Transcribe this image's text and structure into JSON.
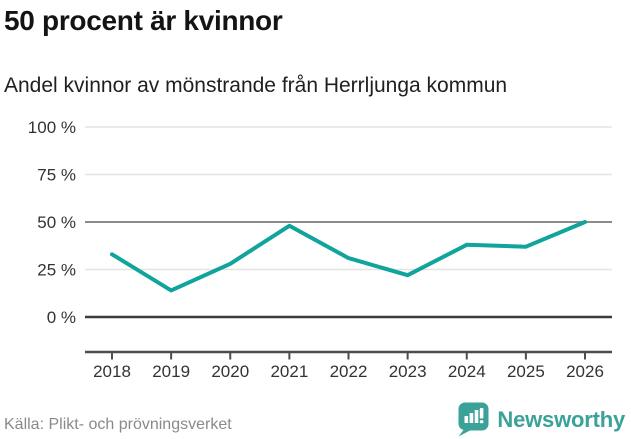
{
  "header": {
    "title": "50 procent är kvinnor",
    "subtitle": "Andel kvinnor av mönstrande från Herrljunga kommun"
  },
  "chart_data": {
    "type": "line",
    "title": "50 procent är kvinnor",
    "subtitle": "Andel kvinnor av mönstrande från Herrljunga kommun",
    "categories": [
      "2018",
      "2019",
      "2020",
      "2021",
      "2022",
      "2023",
      "2024",
      "2025",
      "2026"
    ],
    "series": [
      {
        "name": "Andel kvinnor av mönstrande, Herrljunga kommun (%)",
        "values": [
          33,
          14,
          28,
          48,
          31,
          22,
          38,
          37,
          50
        ]
      }
    ],
    "xlabel": "",
    "ylabel": "",
    "ylim": [
      0,
      100
    ],
    "yticks": [
      0,
      25,
      50,
      75,
      100
    ],
    "ytick_labels": [
      "0 %",
      "25 %",
      "50 %",
      "75 %",
      "100 %"
    ],
    "grid": "horizontal",
    "emphasized_gridlines": [
      0,
      50
    ],
    "legend_position": "none",
    "line_color": "#10a49c"
  },
  "footer": {
    "source": "Källa: Plikt- och prövningsverket",
    "brand_name": "Newsworthy",
    "brand_icon": "newsworthy-bar-chart-speech-bubble-icon",
    "brand_color": "#3ba29a"
  },
  "colors": {
    "accent_teal": "#10a49c",
    "gridline_light": "#e4e4e4",
    "gridline_mid": "#8c8c8c",
    "gridline_dark": "#3d3d3d",
    "axis": "#4d4d4d",
    "tick_text": "#333333",
    "source_text": "#8a8a8a"
  }
}
